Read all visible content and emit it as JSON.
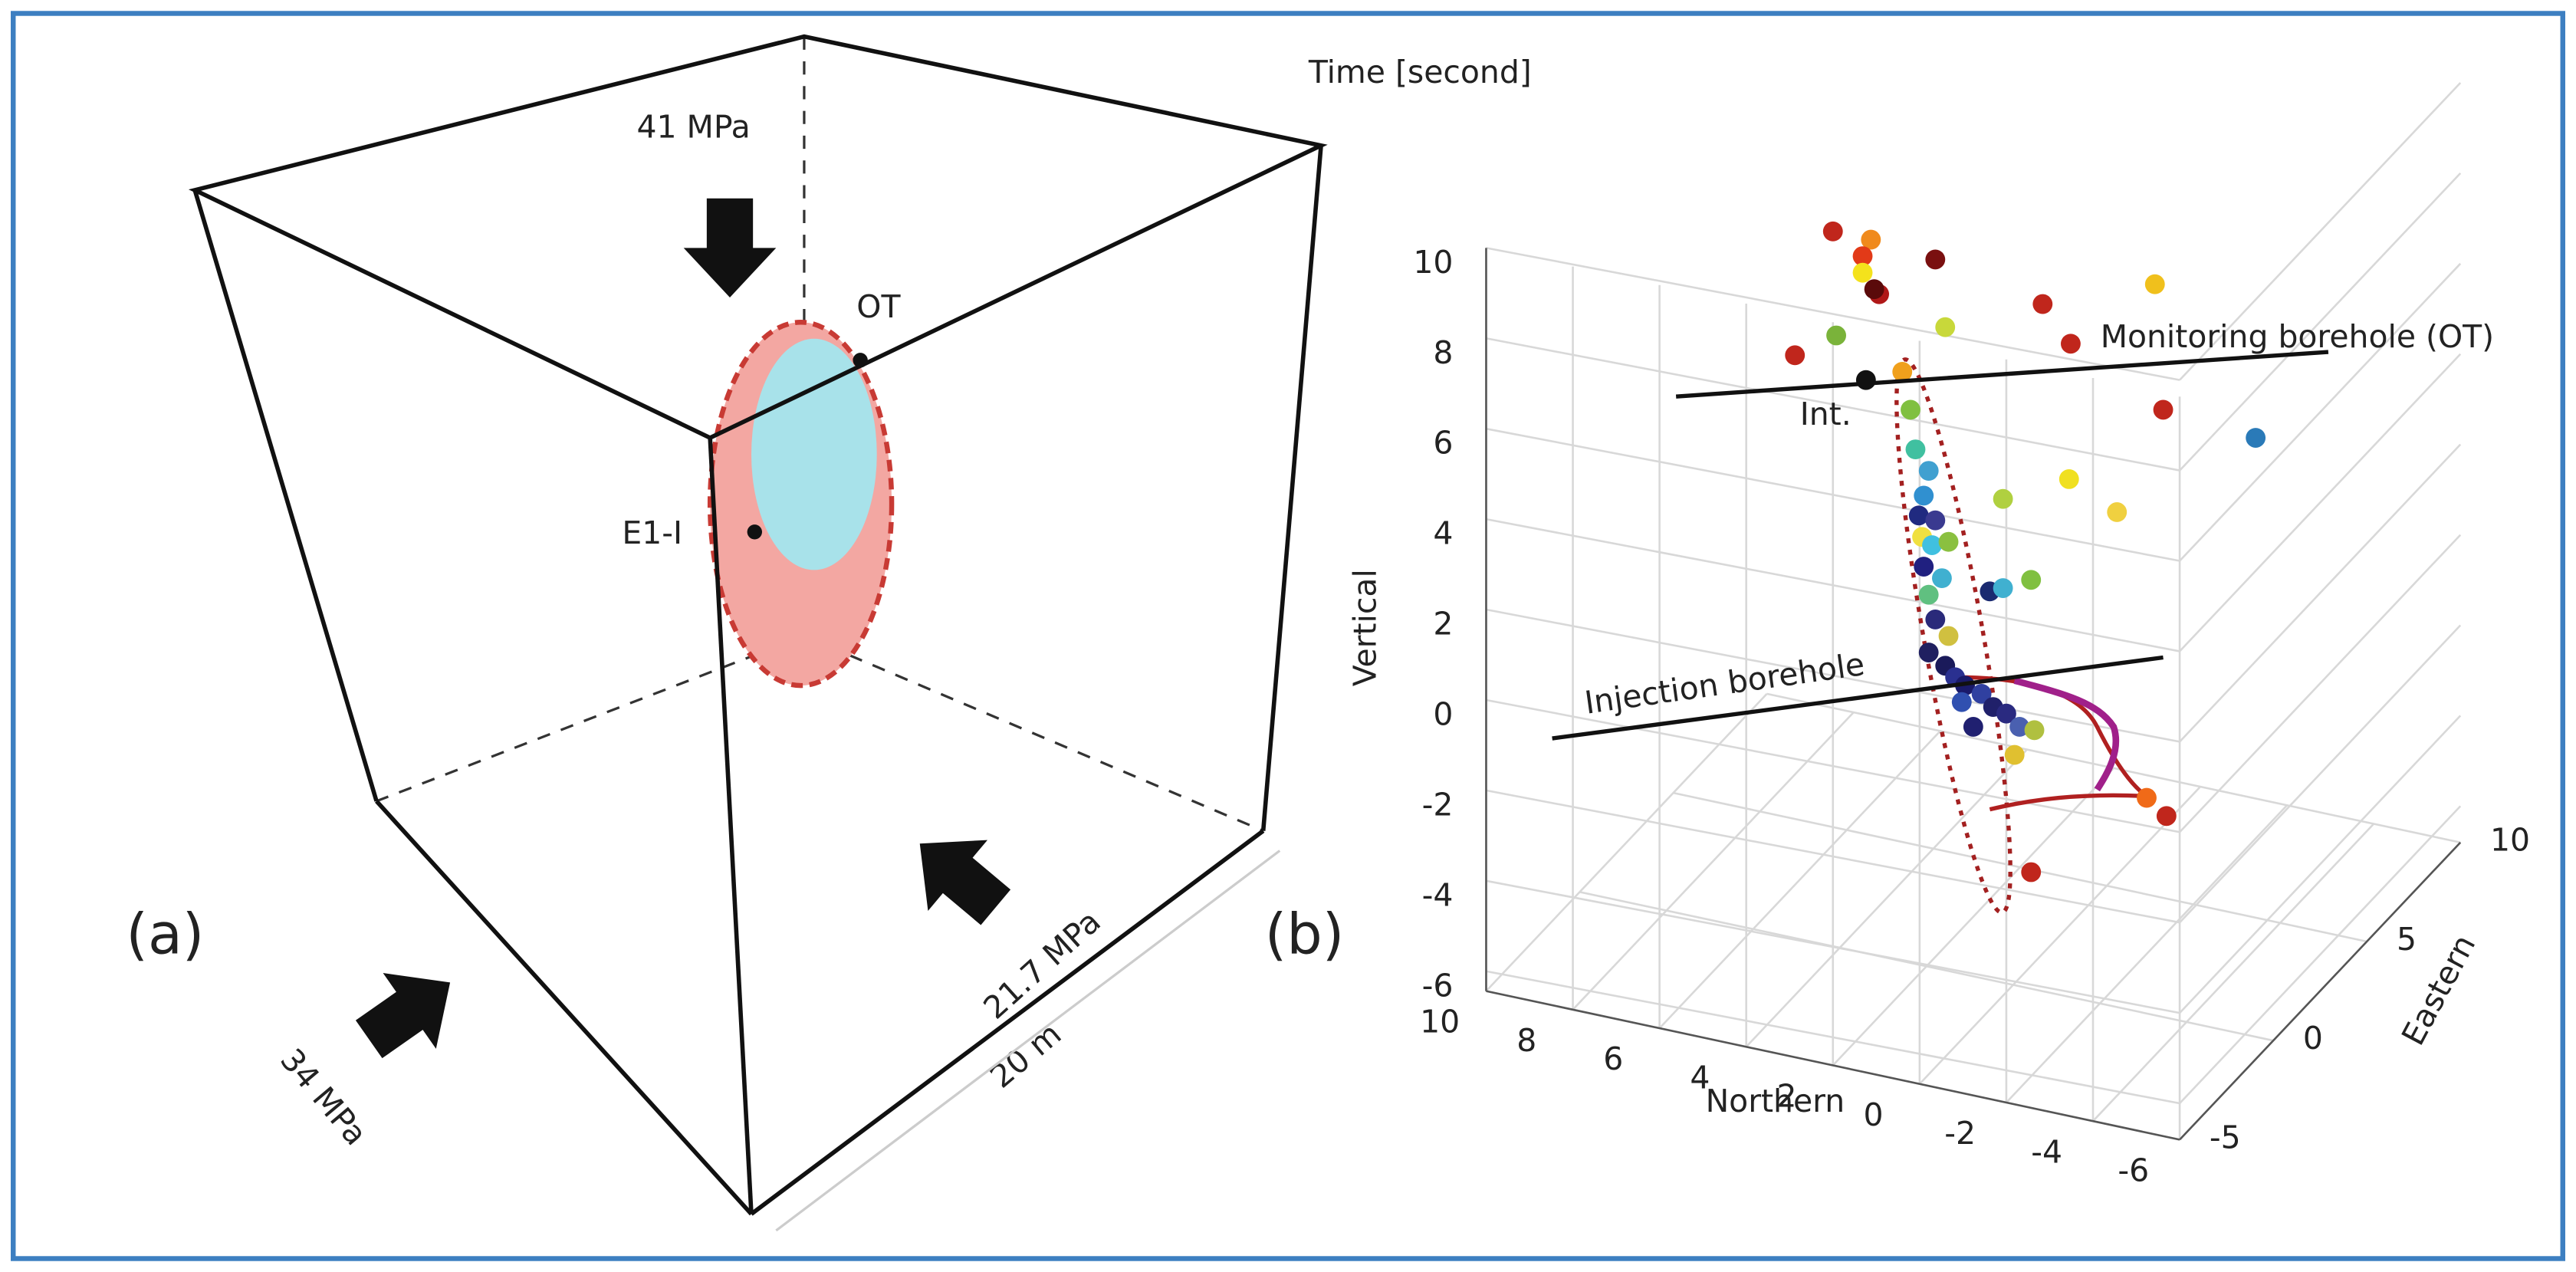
{
  "panel_a": {
    "label": "(a)",
    "stresses": [
      "41 MPa",
      "34 MPa",
      "21.7 MPa"
    ],
    "points": [
      "OT",
      "E1-I"
    ],
    "dimension": "20 m"
  },
  "panel_b": {
    "label": "(b)",
    "title": "Time [second]",
    "axes": {
      "vertical": "Vertical",
      "northern": "Northern",
      "eastern": "Eastern"
    },
    "vertical_ticks": [
      "10",
      "8",
      "6",
      "4",
      "2",
      "0",
      "-2",
      "-4",
      "-6"
    ],
    "northern_ticks": [
      "10",
      "8",
      "6",
      "4",
      "2",
      "0",
      "-2",
      "-4",
      "-6"
    ],
    "eastern_ticks": [
      "10",
      "5",
      "0",
      "-5"
    ],
    "annotations": [
      "Monitoring borehole (OT)",
      "Int.",
      "Injection borehole"
    ]
  }
}
